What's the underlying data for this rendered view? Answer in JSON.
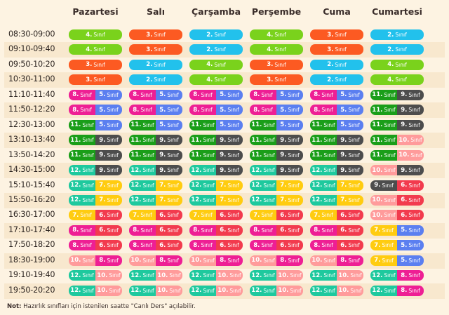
{
  "class_colors": {
    "2": "#22c1ec",
    "3": "#fc5a22",
    "4": "#7ad21c",
    "5": "#5b7ff0",
    "6": "#f23b4e",
    "7": "#ffcc10",
    "8": "#ee1f94",
    "9": "#4d4d4d",
    "10": "#ff9b9b",
    "11": "#1a9e19",
    "12": "#1ec99e"
  },
  "sinif_label": "Sınıf",
  "days": [
    "Pazartesi",
    "Salı",
    "Çarşamba",
    "Perşembe",
    "Cuma",
    "Cumartesi"
  ],
  "rows": [
    {
      "time": "08:30-09:00",
      "cells": [
        [
          "4"
        ],
        [
          "3"
        ],
        [
          "2"
        ],
        [
          "4"
        ],
        [
          "3"
        ],
        [
          "2"
        ]
      ]
    },
    {
      "time": "09:10-09:40",
      "cells": [
        [
          "4"
        ],
        [
          "3"
        ],
        [
          "2"
        ],
        [
          "4"
        ],
        [
          "3"
        ],
        [
          "2"
        ]
      ]
    },
    {
      "time": "09:50-10:20",
      "cells": [
        [
          "3"
        ],
        [
          "2"
        ],
        [
          "4"
        ],
        [
          "3"
        ],
        [
          "2"
        ],
        [
          "4"
        ]
      ]
    },
    {
      "time": "10:30-11:00",
      "cells": [
        [
          "3"
        ],
        [
          "2"
        ],
        [
          "4"
        ],
        [
          "3"
        ],
        [
          "2"
        ],
        [
          "4"
        ]
      ]
    },
    {
      "time": "11:10-11:40",
      "cells": [
        [
          "8",
          "5"
        ],
        [
          "8",
          "5"
        ],
        [
          "8",
          "5"
        ],
        [
          "8",
          "5"
        ],
        [
          "8",
          "5"
        ],
        [
          "11",
          "9"
        ]
      ]
    },
    {
      "time": "11:50-12:20",
      "cells": [
        [
          "8",
          "5"
        ],
        [
          "8",
          "5"
        ],
        [
          "8",
          "5"
        ],
        [
          "8",
          "5"
        ],
        [
          "8",
          "5"
        ],
        [
          "11",
          "9"
        ]
      ]
    },
    {
      "time": "12:30-13:00",
      "cells": [
        [
          "11",
          "5"
        ],
        [
          "11",
          "5"
        ],
        [
          "11",
          "5"
        ],
        [
          "11",
          "5"
        ],
        [
          "11",
          "5"
        ],
        [
          "11",
          "9"
        ]
      ]
    },
    {
      "time": "13:10-13:40",
      "cells": [
        [
          "11",
          "9"
        ],
        [
          "11",
          "9"
        ],
        [
          "11",
          "9"
        ],
        [
          "11",
          "9"
        ],
        [
          "11",
          "9"
        ],
        [
          "11",
          "10"
        ]
      ]
    },
    {
      "time": "13:50-14:20",
      "cells": [
        [
          "11",
          "9"
        ],
        [
          "11",
          "9"
        ],
        [
          "11",
          "9"
        ],
        [
          "11",
          "9"
        ],
        [
          "11",
          "9"
        ],
        [
          "11",
          "10"
        ]
      ]
    },
    {
      "time": "14:30-15:00",
      "cells": [
        [
          "12",
          "9"
        ],
        [
          "12",
          "9"
        ],
        [
          "12",
          "9"
        ],
        [
          "12",
          "9"
        ],
        [
          "12",
          "9"
        ],
        [
          "10",
          "9"
        ]
      ]
    },
    {
      "time": "15:10-15:40",
      "cells": [
        [
          "12",
          "7"
        ],
        [
          "12",
          "7"
        ],
        [
          "12",
          "7"
        ],
        [
          "12",
          "7"
        ],
        [
          "12",
          "7"
        ],
        [
          "9",
          "6"
        ]
      ]
    },
    {
      "time": "15:50-16:20",
      "cells": [
        [
          "12",
          "7"
        ],
        [
          "12",
          "7"
        ],
        [
          "12",
          "7"
        ],
        [
          "12",
          "7"
        ],
        [
          "12",
          "7"
        ],
        [
          "10",
          "6"
        ]
      ]
    },
    {
      "time": "16:30-17:00",
      "cells": [
        [
          "7",
          "6"
        ],
        [
          "7",
          "6"
        ],
        [
          "7",
          "6"
        ],
        [
          "7",
          "6"
        ],
        [
          "7",
          "6"
        ],
        [
          "10",
          "6"
        ]
      ]
    },
    {
      "time": "17:10-17:40",
      "cells": [
        [
          "8",
          "6"
        ],
        [
          "8",
          "6"
        ],
        [
          "8",
          "6"
        ],
        [
          "8",
          "6"
        ],
        [
          "8",
          "6"
        ],
        [
          "7",
          "5"
        ]
      ]
    },
    {
      "time": "17:50-18:20",
      "cells": [
        [
          "8",
          "6"
        ],
        [
          "8",
          "6"
        ],
        [
          "8",
          "6"
        ],
        [
          "8",
          "6"
        ],
        [
          "8",
          "6"
        ],
        [
          "7",
          "5"
        ]
      ]
    },
    {
      "time": "18:30-19:00",
      "cells": [
        [
          "10",
          "8"
        ],
        [
          "10",
          "8"
        ],
        [
          "10",
          "8"
        ],
        [
          "10",
          "8"
        ],
        [
          "10",
          "8"
        ],
        [
          "7",
          "5"
        ]
      ]
    },
    {
      "time": "19:10-19:40",
      "cells": [
        [
          "12",
          "10"
        ],
        [
          "12",
          "10"
        ],
        [
          "12",
          "10"
        ],
        [
          "12",
          "10"
        ],
        [
          "12",
          "10"
        ],
        [
          "12",
          "8"
        ]
      ]
    },
    {
      "time": "19:50-20:20",
      "cells": [
        [
          "12",
          "10"
        ],
        [
          "12",
          "10"
        ],
        [
          "12",
          "10"
        ],
        [
          "12",
          "10"
        ],
        [
          "12",
          "10"
        ],
        [
          "12",
          "8"
        ]
      ]
    }
  ],
  "note": {
    "label": "Not:",
    "text": "Hazırlık sınıfları için istenilen saatte \"Canlı Ders\" açılabilir."
  }
}
